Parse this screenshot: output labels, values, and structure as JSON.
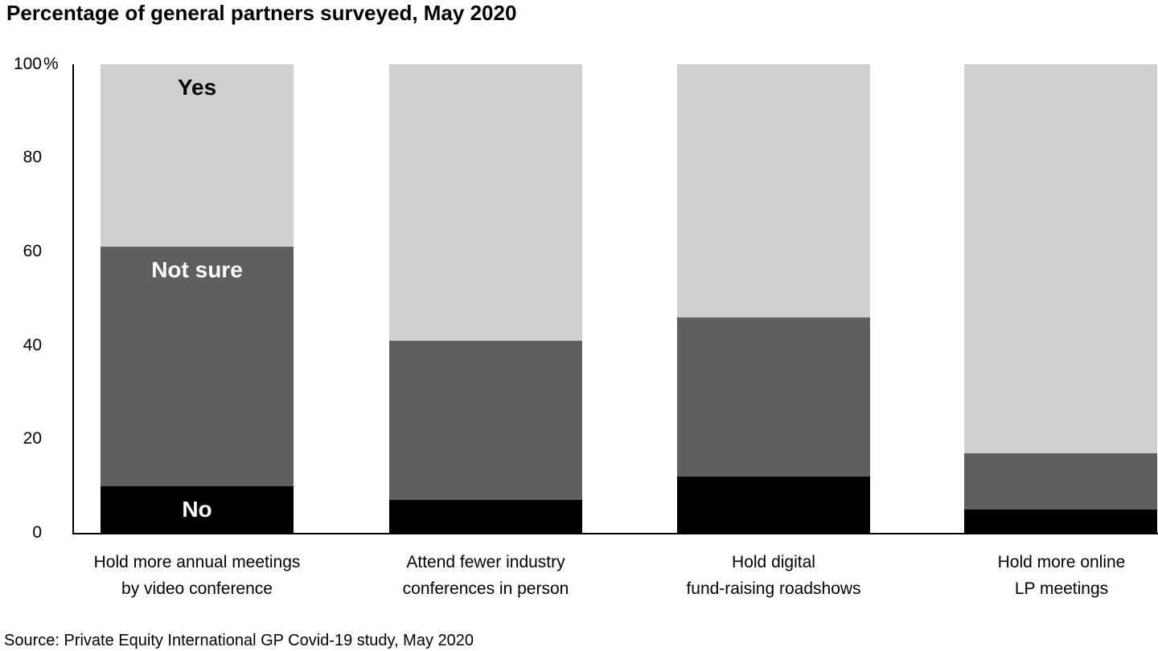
{
  "header": {
    "title": "Percentage of general partners surveyed, May 2020"
  },
  "y_axis": {
    "tick_labels": [
      "100",
      "80",
      "60",
      "40",
      "20",
      "0"
    ],
    "percent_sign": "%"
  },
  "chart_data": {
    "type": "bar",
    "stacked": true,
    "title": "Percentage of general partners surveyed, May 2020",
    "categories": [
      "Hold more annual meetings\nby video conference",
      "Attend fewer industry\nconferences in person",
      "Hold digital\nfund-raising roadshows",
      "Hold more online\nLP meetings"
    ],
    "series": [
      {
        "name": "No",
        "color": "#000000",
        "text_color": "#ffffff",
        "values": [
          10,
          7,
          12,
          5
        ]
      },
      {
        "name": "Not sure",
        "color": "#5f5f5f",
        "text_color": "#ffffff",
        "values": [
          51,
          34,
          34,
          12
        ]
      },
      {
        "name": "Yes",
        "color": "#cfcfcf",
        "text_color": "#000000",
        "values": [
          39,
          59,
          54,
          83
        ]
      }
    ],
    "ylim": [
      0,
      100
    ],
    "y_ticks": [
      0,
      20,
      40,
      60,
      80,
      100
    ],
    "grid": false,
    "legend_position": "labels inside first bar",
    "source": "Source: Private Equity International GP Covid-19 study, May 2020"
  }
}
